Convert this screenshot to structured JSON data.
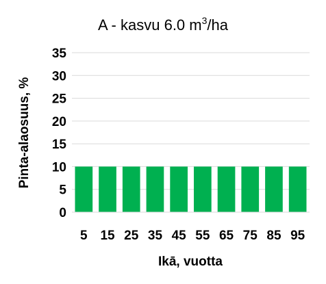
{
  "chart_data": {
    "type": "bar",
    "title": {
      "prefix": "A - kasvu 6.0 m",
      "superscript": "3",
      "suffix": "/ha"
    },
    "xlabel": "Ikā, vuotta",
    "ylabel": "Pinta-alaosuus, %",
    "categories": [
      "5",
      "15",
      "25",
      "35",
      "45",
      "55",
      "65",
      "75",
      "85",
      "95"
    ],
    "values": [
      10,
      10,
      10,
      10,
      10,
      10,
      10,
      10,
      10,
      10
    ],
    "ylim": [
      0,
      35
    ],
    "yticks": [
      "0",
      "5",
      "10",
      "15",
      "20",
      "25",
      "30",
      "35"
    ],
    "grid": true,
    "legend": "none",
    "bar_color": "#00B050",
    "grid_color": "#D9D9D9"
  }
}
